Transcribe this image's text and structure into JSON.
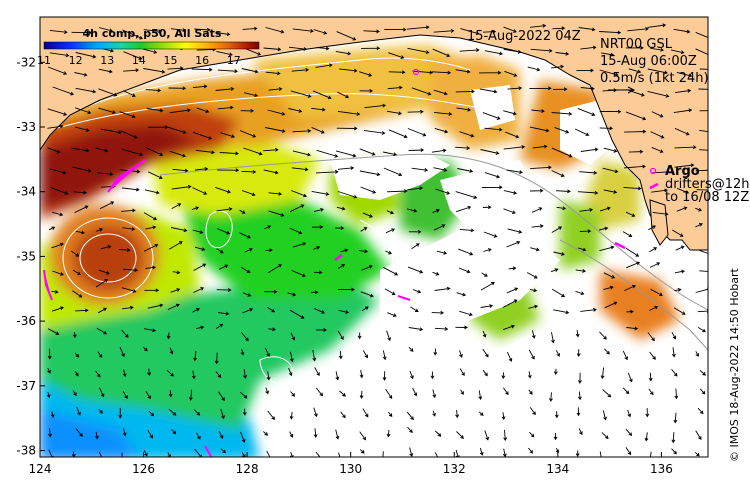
{
  "map": {
    "colorbar_title": "4h comp, p50, All Sats",
    "colorbar_ticks": [
      "11",
      "12",
      "13",
      "14",
      "15",
      "16",
      "17"
    ],
    "colorbar_range": [
      11,
      17.8
    ],
    "timestamp": "15-Aug-2022 04Z",
    "current_source": "NRT00 GSL",
    "current_time": "15-Aug 06:00Z",
    "vector_scale": "0.5m/s (1kt 24h)",
    "legend_argo": "Argo",
    "legend_drifters_1": "drifters@12h",
    "legend_drifters_2": "to 16/08 12Z",
    "credit": "© IMOS 18-Aug-2022 14:50 Hobart",
    "lon_ticks": [
      "124",
      "126",
      "128",
      "130",
      "132",
      "134",
      "136"
    ],
    "lat_ticks": [
      "-32",
      "-33",
      "-34",
      "-35",
      "-36",
      "-37",
      "-38"
    ],
    "lon_range": [
      124,
      136.9
    ],
    "lat_range": [
      -38.1,
      -31.3
    ],
    "colors": {
      "land": "#fccc98",
      "no_data": "#ffffff",
      "argo": "#ff00ff",
      "contour": "#ffffff",
      "bathymetry": "#999999",
      "colormap": [
        "#00008a",
        "#0040ff",
        "#00b0ff",
        "#20d090",
        "#20d020",
        "#a0e000",
        "#ffff00",
        "#ffb000",
        "#e07000",
        "#c03000",
        "#800000"
      ]
    }
  }
}
